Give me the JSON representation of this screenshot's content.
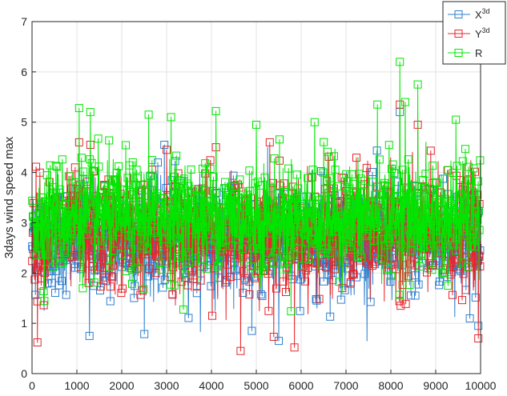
{
  "chart_data": {
    "type": "line",
    "title": "",
    "xlabel": "",
    "ylabel": "3days wind speed max",
    "xlim": [
      0,
      10000
    ],
    "ylim": [
      0,
      7
    ],
    "xticks": [
      0,
      1000,
      2000,
      3000,
      4000,
      5000,
      6000,
      7000,
      8000,
      9000,
      10000
    ],
    "yticks": [
      0,
      1,
      2,
      3,
      4,
      5,
      6,
      7
    ],
    "grid": true,
    "legend_position": "top-right",
    "n_points_per_series": 10000,
    "marker": "square",
    "series": [
      {
        "name": "X",
        "name_superscript": "3d",
        "color": "#2f7fce",
        "range_approx": [
          0.65,
          5.2
        ],
        "typical_band": [
          1.6,
          3.8
        ],
        "notable_points": [
          {
            "x": 1280,
            "y": 0.75
          },
          {
            "x": 2950,
            "y": 4.55
          },
          {
            "x": 4900,
            "y": 0.85
          },
          {
            "x": 5500,
            "y": 0.65
          },
          {
            "x": 8200,
            "y": 5.2
          },
          {
            "x": 9950,
            "y": 0.95
          }
        ]
      },
      {
        "name": "Y",
        "name_superscript": "3d",
        "color": "#e8262c",
        "range_approx": [
          0.45,
          5.35
        ],
        "typical_band": [
          1.7,
          3.9
        ],
        "notable_points": [
          {
            "x": 120,
            "y": 0.62
          },
          {
            "x": 1050,
            "y": 4.6
          },
          {
            "x": 1300,
            "y": 4.55
          },
          {
            "x": 3000,
            "y": 4.45
          },
          {
            "x": 4100,
            "y": 4.5
          },
          {
            "x": 4650,
            "y": 0.45
          },
          {
            "x": 5300,
            "y": 4.6
          },
          {
            "x": 5850,
            "y": 0.52
          },
          {
            "x": 8200,
            "y": 5.35
          },
          {
            "x": 8600,
            "y": 4.95
          },
          {
            "x": 9950,
            "y": 0.7
          }
        ]
      },
      {
        "name": "R",
        "name_superscript": "",
        "color": "#00e600",
        "range_approx": [
          1.2,
          6.2
        ],
        "typical_band": [
          2.0,
          4.2
        ],
        "notable_points": [
          {
            "x": 1050,
            "y": 5.28
          },
          {
            "x": 1300,
            "y": 5.2
          },
          {
            "x": 2600,
            "y": 5.15
          },
          {
            "x": 3100,
            "y": 5.1
          },
          {
            "x": 4100,
            "y": 5.22
          },
          {
            "x": 5000,
            "y": 4.95
          },
          {
            "x": 6300,
            "y": 5.0
          },
          {
            "x": 7700,
            "y": 5.35
          },
          {
            "x": 8200,
            "y": 6.2
          },
          {
            "x": 8320,
            "y": 5.4
          },
          {
            "x": 8600,
            "y": 5.75
          },
          {
            "x": 9450,
            "y": 5.05
          }
        ]
      }
    ]
  }
}
